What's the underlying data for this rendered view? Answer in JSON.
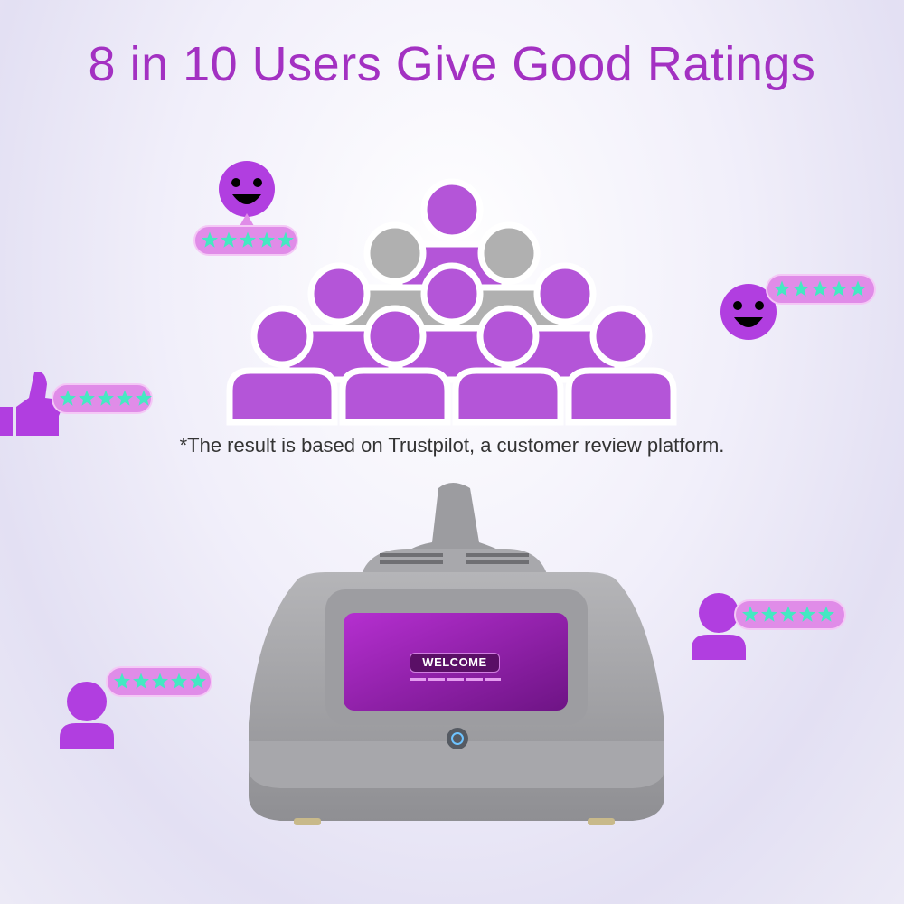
{
  "headline": "8 in 10 Users Give Good Ratings",
  "footnote": "*The result is based on Trustpilot, a customer review platform.",
  "device": {
    "screen_text": "WELCOME"
  },
  "ratings": {
    "users_positive": 8,
    "users_total": 10,
    "stars_per_badge": 5
  },
  "colors": {
    "accent": "#a331c2",
    "person": "#b455d8",
    "person_neutral": "#b0b0b0",
    "star": "#45e8c2",
    "bubble": "#e08ce8"
  },
  "icons": [
    "smiley-face-icon",
    "thumbs-up-icon",
    "user-icon",
    "star-icon",
    "power-icon"
  ]
}
